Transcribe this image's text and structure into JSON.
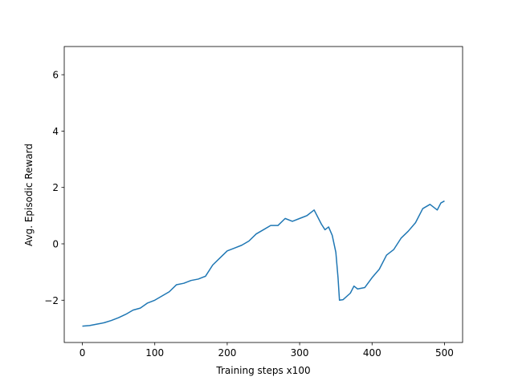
{
  "chart_data": {
    "type": "line",
    "x_label": "Training steps x100",
    "y_label": "Avg. Episodic Reward",
    "x": [
      0,
      10,
      20,
      30,
      40,
      50,
      60,
      70,
      80,
      90,
      100,
      110,
      120,
      130,
      140,
      150,
      160,
      170,
      180,
      190,
      200,
      210,
      220,
      230,
      240,
      250,
      260,
      270,
      280,
      290,
      300,
      310,
      320,
      330,
      335,
      340,
      345,
      350,
      353,
      355,
      360,
      370,
      375,
      380,
      390,
      400,
      410,
      420,
      430,
      440,
      450,
      460,
      470,
      480,
      490,
      495,
      500
    ],
    "series": [
      {
        "color": "#1f77b4",
        "values": [
          -2.92,
          -2.9,
          -2.85,
          -2.8,
          -2.72,
          -2.62,
          -2.5,
          -2.35,
          -2.28,
          -2.1,
          -2.0,
          -1.85,
          -1.7,
          -1.45,
          -1.4,
          -1.3,
          -1.25,
          -1.15,
          -0.75,
          -0.5,
          -0.25,
          -0.15,
          -0.05,
          0.1,
          0.35,
          0.5,
          0.65,
          0.65,
          0.9,
          0.8,
          0.9,
          1.0,
          1.2,
          0.7,
          0.5,
          0.6,
          0.3,
          -0.3,
          -1.2,
          -2.0,
          -1.98,
          -1.75,
          -1.5,
          -1.6,
          -1.55,
          -1.2,
          -0.9,
          -0.4,
          -0.2,
          0.2,
          0.45,
          0.75,
          1.25,
          1.4,
          1.2,
          1.45,
          1.52
        ]
      }
    ],
    "xlim": [
      -25,
      525
    ],
    "ylim": [
      -3.5,
      7
    ],
    "xticks": [
      0,
      100,
      200,
      300,
      400,
      500
    ],
    "yticks": [
      {
        "value": -2,
        "label": "−2"
      },
      0,
      2,
      4,
      6
    ]
  }
}
